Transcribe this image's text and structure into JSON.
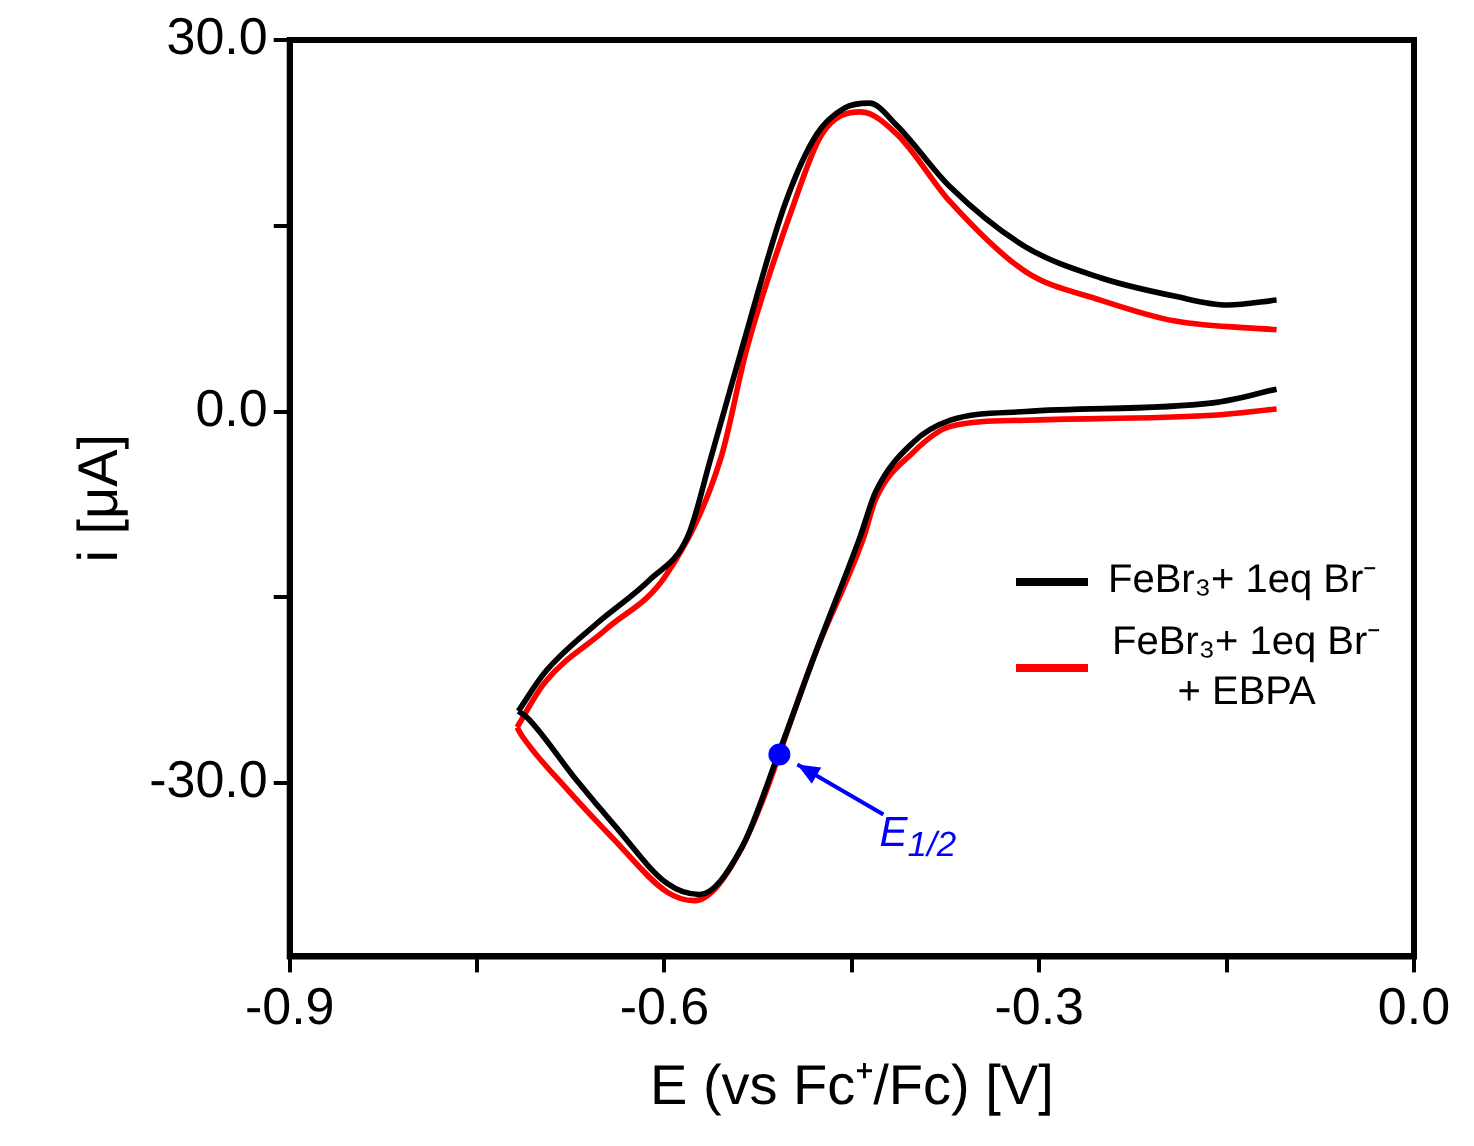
{
  "chart_data": {
    "type": "line",
    "xlabel": "E (vs Fc⁺/Fc) [V]",
    "ylabel": "i [μA]",
    "xlim": [
      -0.9,
      0
    ],
    "xticks": [
      -0.9,
      {
        "value": -0.75,
        "label": null
      },
      -0.6,
      {
        "value": -0.45,
        "label": null
      },
      -0.3,
      {
        "value": -0.15,
        "label": null
      },
      {
        "value": 0,
        "label": "0.0"
      }
    ],
    "ylim": [
      -44,
      30
    ],
    "yticks": [
      {
        "value": -30,
        "label": "-30.0"
      },
      {
        "value": -15,
        "label": null
      },
      {
        "value": 0,
        "label": "0.0"
      },
      {
        "value": 15,
        "label": null
      },
      {
        "value": 30,
        "label": "30.0"
      }
    ],
    "grid": false,
    "legend": "right",
    "marker": "none",
    "line_style": "solid",
    "series": [
      {
        "name": "FeBr₃+ 1eq Br⁻",
        "color": "#000000",
        "x": [
          -0.717,
          -0.696,
          -0.654,
          -0.612,
          -0.581,
          -0.563,
          -0.538,
          -0.503,
          -0.478,
          -0.456,
          -0.436,
          -0.414,
          -0.371,
          -0.311,
          -0.251,
          -0.191,
          -0.149,
          -0.11
        ],
        "values": [
          -24.2,
          -21.1,
          -17.1,
          -13.6,
          -10.0,
          -3.8,
          5.1,
          16.9,
          22.4,
          24.5,
          24.9,
          23.1,
          18.1,
          13.3,
          10.8,
          9.3,
          8.6,
          9.0
        ]
      },
      {
        "color": "#000000",
        "x": [
          -0.717,
          -0.71,
          -0.671,
          -0.641,
          -0.598,
          -0.572,
          -0.538,
          -0.509,
          -0.478,
          -0.443,
          -0.431,
          -0.401,
          -0.371,
          -0.311,
          -0.161,
          -0.11
        ],
        "values": [
          -24.2,
          -24.7,
          -29.7,
          -33.3,
          -38.1,
          -39.0,
          -35.2,
          -27.7,
          -19.2,
          -10.0,
          -6.5,
          -2.5,
          -0.7,
          0,
          0.7,
          1.8
        ]
      },
      {
        "name": "FeBr₃+ 1eq Br⁻ + EBPA",
        "color": "#ff0000",
        "x": [
          -0.718,
          -0.696,
          -0.647,
          -0.598,
          -0.555,
          -0.534,
          -0.496,
          -0.474,
          -0.443,
          -0.414,
          -0.371,
          -0.311,
          -0.251,
          -0.191,
          -0.11
        ],
        "values": [
          -25.5,
          -21.9,
          -17.6,
          -13.1,
          -3.8,
          5.1,
          16.9,
          22.4,
          24.2,
          22.4,
          16.9,
          11.3,
          9.0,
          7.3,
          6.6
        ]
      },
      {
        "color": "#ff0000",
        "x": [
          -0.718,
          -0.714,
          -0.678,
          -0.641,
          -0.598,
          -0.576,
          -0.538,
          -0.509,
          -0.478,
          -0.441,
          -0.431,
          -0.401,
          -0.371,
          -0.311,
          -0.161,
          -0.11
        ],
        "values": [
          -25.5,
          -26.2,
          -30.5,
          -34.5,
          -38.8,
          -39.5,
          -35.2,
          null,
          -19.2,
          -10.3,
          -7.1,
          -3.3,
          -1.2,
          -0.7,
          -0.3,
          0.2
        ]
      },
      {
        "color": "#0000ff",
        "type": "scatter",
        "marker": "circle",
        "x": [
          -0.508
        ],
        "values": [
          -27.7
        ]
      }
    ],
    "annotations": [
      {
        "text": "E$_{1/2}$",
        "x": -0.508,
        "y": -27.7
      }
    ]
  }
}
